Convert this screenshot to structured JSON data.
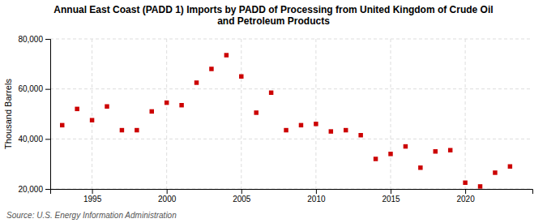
{
  "chart_data": {
    "type": "scatter",
    "title": "Annual East Coast (PADD 1) Imports by PADD of Processing from United Kingdom of Crude Oil\nand Petroleum Products",
    "ylabel": "Thousand Barrels",
    "source": "Source: U.S. Energy Information Administration",
    "x": [
      1993,
      1994,
      1995,
      1996,
      1997,
      1998,
      1999,
      2000,
      2001,
      2002,
      2003,
      2004,
      2005,
      2006,
      2007,
      2008,
      2009,
      2010,
      2011,
      2012,
      2013,
      2014,
      2015,
      2016,
      2017,
      2018,
      2019,
      2020,
      2021,
      2022,
      2023
    ],
    "values": [
      45500,
      52000,
      47500,
      53000,
      43500,
      43500,
      51000,
      54500,
      53500,
      62500,
      68000,
      73500,
      65000,
      50500,
      58500,
      43500,
      45500,
      46000,
      43000,
      43500,
      41500,
      32000,
      34000,
      37000,
      28500,
      35000,
      35500,
      22500,
      21000,
      26500,
      29000
    ],
    "color": "#cc0000",
    "marker": "square",
    "xlim": [
      1992.2,
      2024.5
    ],
    "xticks": [
      1995,
      2000,
      2005,
      2010,
      2015,
      2020
    ],
    "ylim": [
      20000,
      80000
    ],
    "yticks": [
      {
        "value": 20000,
        "label": "20,000"
      },
      {
        "value": 40000,
        "label": "40,000"
      },
      {
        "value": 60000,
        "label": "60,000"
      },
      {
        "value": 80000,
        "label": "80,000"
      }
    ],
    "grid": true
  }
}
